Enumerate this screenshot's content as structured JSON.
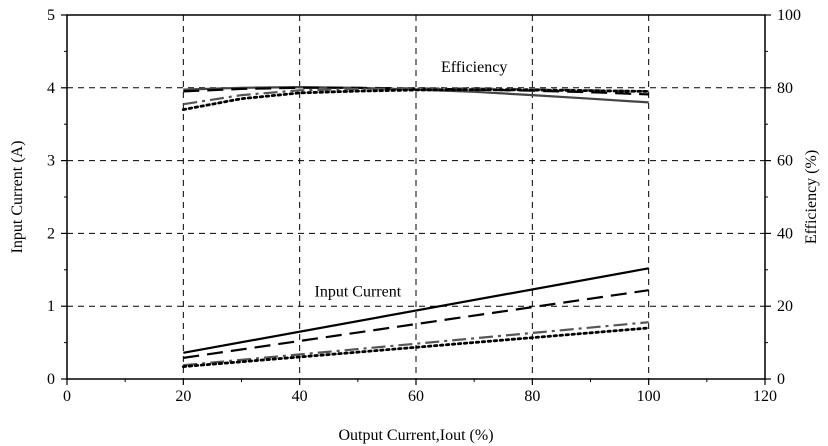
{
  "chart_data": {
    "type": "line",
    "title": "",
    "xlabel": "Output Current,Iout (%)",
    "ylabel": "Input Current (A)",
    "y2label": "Efficiency (%)",
    "xlim": [
      0,
      120
    ],
    "ylim": [
      0,
      5
    ],
    "y2lim": [
      0,
      100
    ],
    "xticks": [
      "0",
      "20",
      "40",
      "60",
      "80",
      "100",
      "120"
    ],
    "yticks": [
      "0",
      "1",
      "2",
      "3",
      "4",
      "5"
    ],
    "y2ticks": [
      "0",
      "20",
      "40",
      "60",
      "80",
      "100"
    ],
    "grid": true,
    "legend": "none",
    "annotations": [
      {
        "text": "Efficiency",
        "x": 70,
        "y": 4.22
      },
      {
        "text": "Input Current",
        "x": 50,
        "y": 1.13
      }
    ],
    "input_current_series": [
      {
        "style": "solid",
        "color": "#000000",
        "x": [
          20,
          100
        ],
        "y": [
          0.36,
          1.52
        ]
      },
      {
        "style": "dashed",
        "color": "#000000",
        "x": [
          20,
          100
        ],
        "y": [
          0.29,
          1.22
        ]
      },
      {
        "style": "dashdot",
        "color": "#555555",
        "x": [
          20,
          100
        ],
        "y": [
          0.19,
          0.78
        ]
      },
      {
        "style": "dotted",
        "color": "#000000",
        "x": [
          20,
          100
        ],
        "y": [
          0.17,
          0.7
        ]
      }
    ],
    "efficiency_series": [
      {
        "style": "solid",
        "color": "#444444",
        "x": [
          20,
          30,
          40,
          50,
          60,
          70,
          80,
          90,
          100
        ],
        "y": [
          79.5,
          80.0,
          80.2,
          80.0,
          79.5,
          78.9,
          78.0,
          77.0,
          76.0
        ]
      },
      {
        "style": "dashed",
        "color": "#000000",
        "x": [
          20,
          30,
          40,
          50,
          60,
          70,
          80,
          90,
          100
        ],
        "y": [
          79.0,
          79.7,
          80.0,
          80.0,
          79.8,
          79.5,
          79.2,
          78.8,
          78.2
        ]
      },
      {
        "style": "dashdot",
        "color": "#555555",
        "x": [
          20,
          30,
          40,
          50,
          60,
          70,
          80,
          90,
          100
        ],
        "y": [
          75.5,
          78.0,
          79.3,
          79.7,
          79.8,
          79.8,
          79.6,
          79.3,
          79.0
        ]
      },
      {
        "style": "dotted",
        "color": "#000000",
        "x": [
          20,
          30,
          40,
          50,
          60,
          70,
          80,
          90,
          100
        ],
        "y": [
          74.0,
          77.0,
          78.6,
          79.1,
          79.4,
          79.5,
          79.4,
          79.2,
          79.0
        ]
      }
    ]
  }
}
